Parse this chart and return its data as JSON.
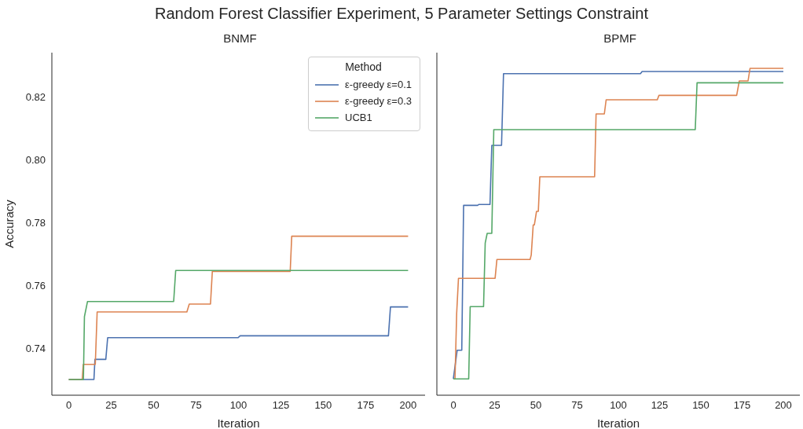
{
  "chart_data": [
    {
      "type": "line",
      "title": "BNMF",
      "xlabel": "Iteration",
      "ylabel": "Accuracy",
      "annotations": [
        "Random Forest Classifier Experiment, 5 Parameter Settings Constraint"
      ],
      "legend_title": "Method",
      "legend": "top right",
      "grid": false,
      "marker": "none",
      "line_style": "solid",
      "xlim": [
        -10,
        210
      ],
      "xticks": [
        0,
        25,
        50,
        75,
        100,
        125,
        150,
        175,
        200
      ],
      "ylim": [
        0.725,
        0.834
      ],
      "yticks": [
        0.74,
        0.76,
        0.78,
        {
          "value": 0.8,
          "label": "0.80"
        },
        0.82
      ],
      "series": [
        {
          "name": "ε-greedy ε=0.1",
          "color": "#4c72b0",
          "x": [
            0,
            14.8,
            15.4,
            21.8,
            22.9,
            99.7,
            101,
            188.4,
            189.6,
            200
          ],
          "values": [
            0.73,
            0.73,
            0.7364,
            0.7364,
            0.7433,
            0.7433,
            0.7439,
            0.7439,
            0.7531,
            0.7531
          ]
        },
        {
          "name": "ε-greedy ε=0.3",
          "color": "#dd8452",
          "x": [
            0,
            7.9,
            8.5,
            15.6,
            16.7,
            69.6,
            71,
            83.5,
            84.6,
            130.5,
            131.4,
            200
          ],
          "values": [
            0.73,
            0.73,
            0.7348,
            0.7348,
            0.7515,
            0.7515,
            0.754,
            0.754,
            0.7644,
            0.7644,
            0.7756,
            0.7756
          ]
        },
        {
          "name": "UCB1",
          "color": "#55a868",
          "x": [
            0,
            8.6,
            9.2,
            11,
            61.8,
            63,
            200
          ],
          "values": [
            0.73,
            0.73,
            0.75,
            0.7548,
            0.7548,
            0.7647,
            0.7647
          ]
        }
      ]
    },
    {
      "type": "line",
      "title": "BPMF",
      "xlabel": "Iteration",
      "grid": false,
      "marker": "none",
      "line_style": "solid",
      "tick_labels": "x",
      "xlim": [
        -10,
        210
      ],
      "xticks": [
        0,
        25,
        50,
        75,
        100,
        125,
        150,
        175,
        200
      ],
      "ylim": [
        0.725,
        0.834
      ],
      "yticks": [
        0.74,
        0.76,
        0.78,
        0.8,
        0.82
      ],
      "series": [
        {
          "color": "#4c72b0",
          "x": [
            0,
            2.3,
            5.1,
            6.2,
            14.7,
            15.5,
            22.2,
            23.3,
            29.2,
            30.4,
            113.4,
            114.4,
            200
          ],
          "values": [
            0.7302,
            0.7393,
            0.7393,
            0.7854,
            0.7854,
            0.7857,
            0.7857,
            0.8045,
            0.8045,
            0.8273,
            0.8273,
            0.828,
            0.828
          ]
        },
        {
          "color": "#dd8452",
          "x": [
            1,
            2,
            3.1,
            25.3,
            26.4,
            46.5,
            47.2,
            48.4,
            49.1,
            50.4,
            51.5,
            52.4,
            85.6,
            86.5,
            91.5,
            92.6,
            123.6,
            124.6,
            171.7,
            173.3,
            178.6,
            179.8,
            200
          ],
          "values": [
            0.7302,
            0.751,
            0.7622,
            0.7622,
            0.7682,
            0.7682,
            0.7696,
            0.7792,
            0.7792,
            0.7835,
            0.7835,
            0.7945,
            0.7945,
            0.8145,
            0.8145,
            0.819,
            0.819,
            0.8204,
            0.8204,
            0.825,
            0.825,
            0.829,
            0.829
          ]
        },
        {
          "color": "#55a868",
          "x": [
            0,
            9.3,
            10.2,
            18.3,
            19.3,
            20.5,
            23.3,
            24.5,
            146.6,
            147.7,
            200
          ],
          "values": [
            0.7302,
            0.7302,
            0.7532,
            0.7532,
            0.7734,
            0.7765,
            0.7765,
            0.8095,
            0.8095,
            0.8244,
            0.8244
          ]
        }
      ]
    }
  ]
}
